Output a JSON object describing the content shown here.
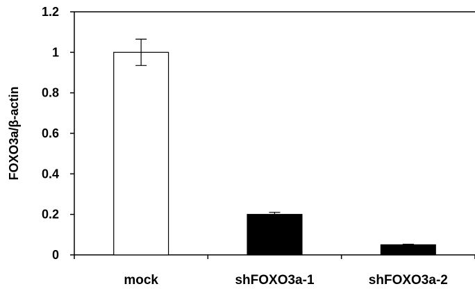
{
  "chart_data": {
    "type": "bar",
    "title": "",
    "xlabel": "",
    "ylabel": "FOXO3a/β-actin",
    "ylim": [
      0,
      1.2
    ],
    "yticks": [
      "0",
      "0.2",
      "0.4",
      "0.6",
      "0.8",
      "1",
      "1.2"
    ],
    "yticks_values": [
      0,
      0.2,
      0.4,
      0.6,
      0.8,
      1.0,
      1.2
    ],
    "categories": [
      "mock",
      "shFOXO3a-1",
      "shFOXO3a-2"
    ],
    "values": [
      1.0,
      0.2,
      0.05
    ],
    "errors": [
      0.065,
      0.01,
      0.003
    ],
    "bar_colors": [
      "#ffffff",
      "#000000",
      "#000000"
    ],
    "grid": false
  }
}
